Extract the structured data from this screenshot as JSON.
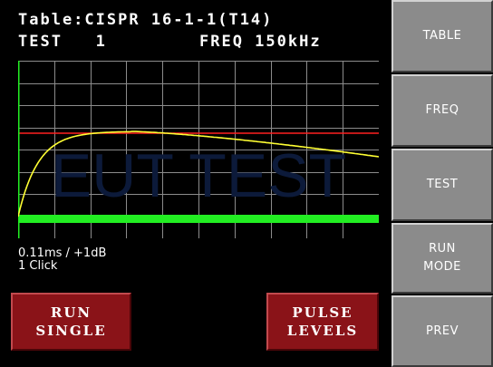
{
  "header": {
    "title": "Table:CISPR 16-1-1(T14)",
    "test": "TEST   1",
    "freq": "FREQ 150kHz"
  },
  "plot": {
    "watermark": "EUT TEST",
    "grid_color": "#8c8c8c",
    "trace_color": "#ffff33",
    "reference_color": "#ff2020",
    "baseline_color": "#22ee22",
    "axis_color": "#22ee22"
  },
  "status": {
    "line1": "0.11ms / +1dB",
    "line2": "1 Click"
  },
  "buttons": {
    "run_single": [
      "RUN",
      "SINGLE"
    ],
    "pulse_levels": [
      "PULSE",
      "LEVELS"
    ]
  },
  "sidebar": {
    "table": "TABLE",
    "freq": "FREQ",
    "test": "TEST",
    "run_mode": [
      "RUN",
      "MODE"
    ],
    "prev": "PREV"
  }
}
